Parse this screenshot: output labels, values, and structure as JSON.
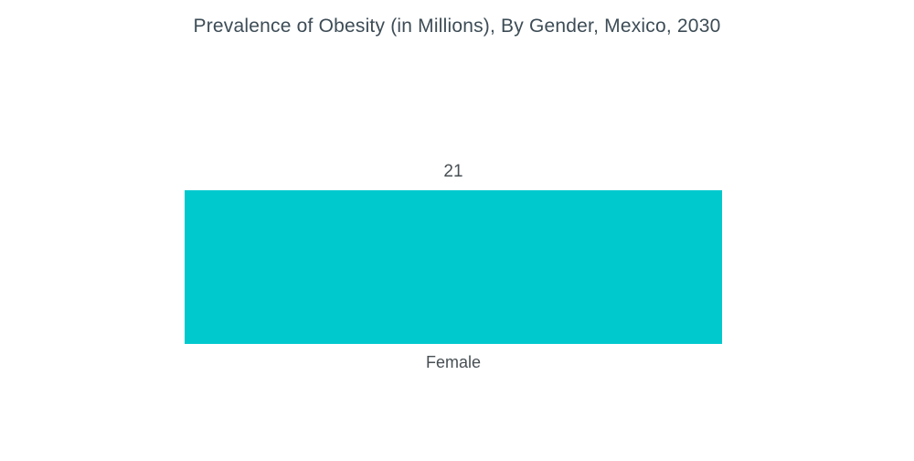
{
  "title": "Prevalence of Obesity (in Millions), By Gender, Mexico, 2030",
  "chart_data": {
    "type": "bar",
    "title": "Prevalence of Obesity (in Millions), By Gender, Mexico, 2030",
    "categories": [
      "Female"
    ],
    "values": [
      21
    ],
    "series": [
      {
        "name": "Female",
        "values": [
          21
        ]
      }
    ],
    "xlabel": "",
    "ylabel": "",
    "ylim": [
      0,
      25
    ],
    "grid": false,
    "legend": false,
    "value_labels_shown": true,
    "orientation": "vertical"
  },
  "colors": {
    "bar": "#00c9ce",
    "title_text": "#3d4c56",
    "label_text": "#474f54",
    "background": "#ffffff"
  }
}
